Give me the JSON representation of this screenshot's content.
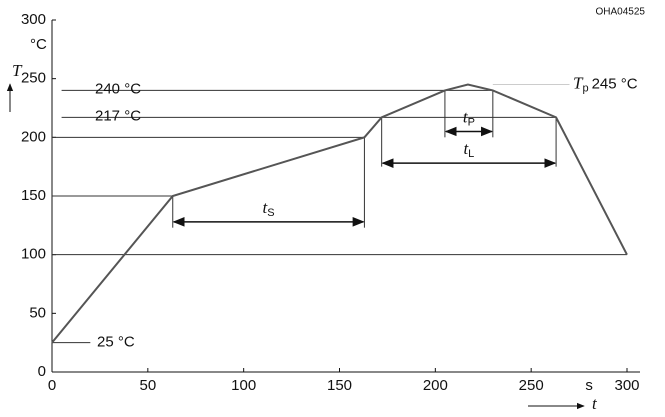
{
  "chart_data": {
    "type": "line",
    "code": "OHA04525",
    "ylabel": "T",
    "yunit": "°C",
    "xlabel": "t",
    "xunit": "s",
    "x": [
      0,
      63,
      163,
      172,
      205,
      217,
      230,
      263,
      300
    ],
    "series": [
      {
        "color": "#555555",
        "values": [
          25,
          150,
          200,
          217,
          240,
          245,
          240,
          217,
          100
        ]
      }
    ],
    "xlim": [
      0,
      300
    ],
    "xticks": [
      0,
      50,
      100,
      150,
      200,
      250,
      300
    ],
    "ylim": [
      0,
      300
    ],
    "yticks": [
      0,
      50,
      100,
      150,
      200,
      250,
      300
    ],
    "hlines": [
      {
        "y": 240,
        "x": [
          5,
          230
        ],
        "label": "240 °C"
      },
      {
        "y": 217,
        "x": [
          5,
          263
        ],
        "label": "217 °C"
      },
      {
        "y": 200,
        "x": [
          0,
          163
        ]
      },
      {
        "y": 150,
        "x": [
          0,
          63
        ]
      },
      {
        "y": 100,
        "x": [
          0,
          300
        ]
      },
      {
        "y": 25,
        "x": [
          0,
          20
        ],
        "label": "25 °C"
      },
      {
        "y": 245,
        "x": [
          230,
          270
        ]
      }
    ],
    "peak_label": {
      "symbol": "T",
      "sub": "p",
      "text": "245 °C"
    },
    "vlines": [
      {
        "x": 63,
        "y": [
          123,
          150
        ]
      },
      {
        "x": 163,
        "y": [
          123,
          200
        ]
      },
      {
        "x": 172,
        "y": [
          175,
          217
        ]
      },
      {
        "x": 263,
        "y": [
          175,
          217
        ]
      },
      {
        "x": 205,
        "y": [
          200,
          240
        ]
      },
      {
        "x": 230,
        "y": [
          200,
          240
        ]
      }
    ],
    "spans": [
      {
        "symbol": "t",
        "sub": "S",
        "x": [
          63,
          163
        ],
        "y": 128
      },
      {
        "symbol": "t",
        "sub": "P",
        "x": [
          205,
          230
        ],
        "y": 205
      },
      {
        "symbol": "t",
        "sub": "L",
        "x": [
          172,
          263
        ],
        "y": 178
      }
    ]
  }
}
